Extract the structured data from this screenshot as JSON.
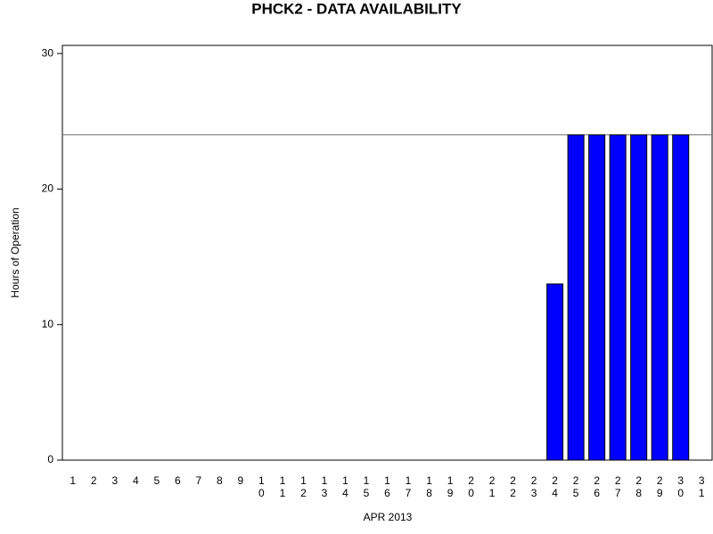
{
  "chart_data": {
    "type": "bar",
    "title": "PHCK2 - DATA AVAILABILITY",
    "x_label": "APR 2013",
    "y_label": "Hours of Operation",
    "categories": [
      "1",
      "2",
      "3",
      "4",
      "5",
      "6",
      "7",
      "8",
      "9",
      "10",
      "11",
      "12",
      "13",
      "14",
      "15",
      "16",
      "17",
      "18",
      "19",
      "20",
      "21",
      "22",
      "23",
      "24",
      "25",
      "26",
      "27",
      "28",
      "29",
      "30",
      "31"
    ],
    "values": [
      0,
      0,
      0,
      0,
      0,
      0,
      0,
      0,
      0,
      0,
      0,
      0,
      0,
      0,
      0,
      0,
      0,
      0,
      0,
      0,
      0,
      0,
      0,
      13,
      24,
      24,
      24,
      24,
      24,
      24,
      0
    ],
    "color": "#0000ff",
    "reference_line": 24,
    "ylim": [
      0,
      30.6
    ],
    "yticks": [
      0,
      10,
      20,
      30
    ]
  }
}
